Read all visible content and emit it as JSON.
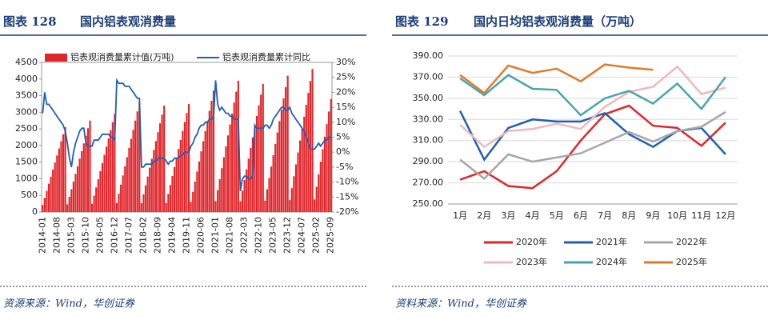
{
  "chart_data": [
    {
      "type": "bar",
      "label": "图表 128",
      "title": "国内铝表观消费量",
      "source": "资源来源：Wind，华创证券",
      "categories": [
        "2014-01",
        null,
        null,
        null,
        null,
        null,
        null,
        "2014-08",
        null,
        null,
        null,
        null,
        null,
        null,
        "2015-03",
        null,
        null,
        null,
        null,
        null,
        null,
        "2015-10",
        null,
        null,
        null,
        null,
        null,
        null,
        "2016-05",
        null,
        null,
        null,
        null,
        null,
        null,
        "2016-12",
        null,
        null,
        null,
        null,
        null,
        null,
        "2017-07",
        null,
        null,
        null,
        null,
        null,
        null,
        "2018-02",
        null,
        null,
        null,
        null,
        null,
        null,
        "2018-09",
        null,
        null,
        null,
        null,
        null,
        null,
        "2019-04",
        null,
        null,
        null,
        null,
        null,
        null,
        "2019-11",
        null,
        null,
        null,
        null,
        null,
        null,
        "2020-06",
        null,
        null,
        null,
        null,
        null,
        null,
        "2021-01",
        null,
        null,
        null,
        null,
        null,
        null,
        "2021-08",
        null,
        null,
        null,
        null,
        null,
        null,
        "2022-03",
        null,
        null,
        null,
        null,
        null,
        null,
        "2022-10",
        null,
        null,
        null,
        null,
        null,
        null,
        "2023-05",
        null,
        null,
        null,
        null,
        null,
        null,
        "2023-12",
        null,
        null,
        null,
        null,
        null,
        null,
        "2024-07",
        null,
        null,
        null,
        null,
        null,
        null,
        "2025-02",
        null,
        null,
        null,
        null,
        null,
        null,
        "2025-09"
      ],
      "series": [
        {
          "name": "铝表观消费量累计值(万吨)",
          "color": "#e0262b",
          "values": [
            213,
            425,
            638,
            850,
            1063,
            1275,
            1488,
            1700,
            1913,
            2125,
            2338,
            2550,
            229,
            458,
            688,
            917,
            1146,
            1375,
            1604,
            1833,
            2063,
            2292,
            2521,
            2750,
            246,
            492,
            738,
            983,
            1229,
            1475,
            1721,
            1967,
            2213,
            2458,
            2704,
            2950,
            275,
            550,
            825,
            1100,
            1375,
            1650,
            1925,
            2200,
            2475,
            2750,
            3025,
            3300,
            267,
            533,
            800,
            1067,
            1333,
            1600,
            1867,
            2133,
            2400,
            2667,
            2933,
            3200,
            271,
            542,
            813,
            1083,
            1354,
            1625,
            1896,
            2167,
            2438,
            2708,
            2979,
            3250,
            304,
            608,
            913,
            1217,
            1521,
            1825,
            2129,
            2433,
            2738,
            3042,
            3346,
            3650,
            329,
            658,
            988,
            1317,
            1646,
            1975,
            2304,
            2633,
            2963,
            3292,
            3621,
            3950,
            321,
            642,
            963,
            1283,
            1604,
            1925,
            2246,
            2567,
            2888,
            3208,
            3529,
            3850,
            342,
            683,
            1025,
            1367,
            1708,
            2050,
            2392,
            2733,
            3075,
            3417,
            3758,
            4100,
            358,
            717,
            1075,
            1433,
            1792,
            2150,
            2508,
            2867,
            3225,
            3583,
            3942,
            4300,
            378,
            756,
            1133,
            1511,
            1889,
            2267,
            2644,
            3022,
            3400
          ]
        },
        {
          "name": "铝表观消费量累计同比",
          "color": "#1f5fb4",
          "axis": "y2",
          "values": [
            13,
            20,
            16,
            16,
            15,
            14,
            13,
            12,
            11,
            10,
            9,
            7,
            3,
            -2,
            -5,
            0,
            3,
            5,
            7,
            8,
            8,
            3,
            2,
            2,
            2,
            4,
            4,
            4,
            5,
            6,
            6,
            6,
            6,
            5,
            5,
            4,
            24,
            23,
            23,
            23,
            22,
            22,
            22,
            21,
            20,
            19,
            18,
            18,
            -5,
            -5,
            -4,
            -4,
            -4,
            -4,
            -3,
            -3,
            -2,
            -2,
            -2,
            -2,
            -3,
            -4,
            -3,
            -3,
            -2,
            -2,
            -2,
            -1,
            -1,
            0,
            0,
            0,
            2,
            3,
            5,
            6,
            8,
            9,
            9,
            10,
            10,
            11,
            11,
            12,
            24,
            16,
            14,
            15,
            14,
            13,
            13,
            12,
            12,
            11,
            11,
            11,
            -13,
            -9,
            -8,
            -8,
            -9,
            -9,
            -8,
            9,
            8,
            8,
            8,
            8,
            9,
            9,
            8,
            9,
            11,
            12,
            13,
            14,
            15,
            15,
            14,
            14,
            15,
            13,
            12,
            11,
            10,
            9,
            8,
            7,
            5,
            3,
            1,
            1,
            1,
            2,
            3,
            2,
            3,
            4,
            4,
            5,
            5
          ]
        }
      ],
      "ylim": [
        0,
        4500
      ],
      "yticks": [
        0,
        500,
        1000,
        1500,
        2000,
        2500,
        3000,
        3500,
        4000,
        4500
      ],
      "y2lim": [
        -20,
        30
      ],
      "y2ticks": [
        {
          "value": -20,
          "label": "-20%"
        },
        {
          "value": -15,
          "label": "-15%"
        },
        {
          "value": -10,
          "label": "-10%"
        },
        {
          "value": -5,
          "label": "-5%"
        },
        {
          "value": 0,
          "label": "0%"
        },
        {
          "value": 5,
          "label": "5%"
        },
        {
          "value": 10,
          "label": "10%"
        },
        {
          "value": 15,
          "label": "15%"
        },
        {
          "value": 20,
          "label": "20%"
        },
        {
          "value": 25,
          "label": "25%"
        },
        {
          "value": 30,
          "label": "30%"
        }
      ]
    },
    {
      "type": "line",
      "label": "图表 129",
      "title": "国内日均铝表观消费量（万吨）",
      "source": "资料来源：Wind，华创证券",
      "categories": [
        "1月",
        "2月",
        "3月",
        "4月",
        "5月",
        "6月",
        "7月",
        "8月",
        "9月",
        "10月",
        "11月",
        "12月"
      ],
      "series": [
        {
          "name": "2020年",
          "color": "#e0262b",
          "values": [
            273,
            281,
            267,
            265,
            281,
            310,
            335,
            343,
            324,
            322,
            305,
            327
          ]
        },
        {
          "name": "2021年",
          "color": "#1f5fb4",
          "values": [
            338,
            292,
            322,
            330,
            328,
            328,
            336,
            316,
            304,
            319,
            322,
            297
          ]
        },
        {
          "name": "2022年",
          "color": "#a6a6a6",
          "values": [
            292,
            274,
            297,
            290,
            294,
            298,
            308,
            318,
            309,
            319,
            323,
            337
          ]
        },
        {
          "name": "2023年",
          "color": "#f0b8bc",
          "values": [
            325,
            304,
            319,
            321,
            326,
            321,
            342,
            356,
            361,
            380,
            354,
            360
          ]
        },
        {
          "name": "2024年",
          "color": "#4aa3b0",
          "values": [
            369,
            353,
            372,
            359,
            358,
            334,
            350,
            357,
            345,
            364,
            340,
            370
          ]
        },
        {
          "name": "2025年",
          "color": "#e07b2c",
          "values": [
            372,
            355,
            381,
            374,
            378,
            366,
            382,
            379,
            377,
            null,
            null,
            null
          ]
        }
      ],
      "ylim": [
        250,
        390
      ],
      "yticks": [
        {
          "value": 250,
          "label": "250.00"
        },
        {
          "value": 270,
          "label": "270.00"
        },
        {
          "value": 290,
          "label": "290.00"
        },
        {
          "value": 310,
          "label": "310.00"
        },
        {
          "value": 330,
          "label": "330.00"
        },
        {
          "value": 350,
          "label": "350.00"
        },
        {
          "value": 370,
          "label": "370.00"
        },
        {
          "value": 390,
          "label": "390.00"
        }
      ],
      "grid": true
    }
  ]
}
